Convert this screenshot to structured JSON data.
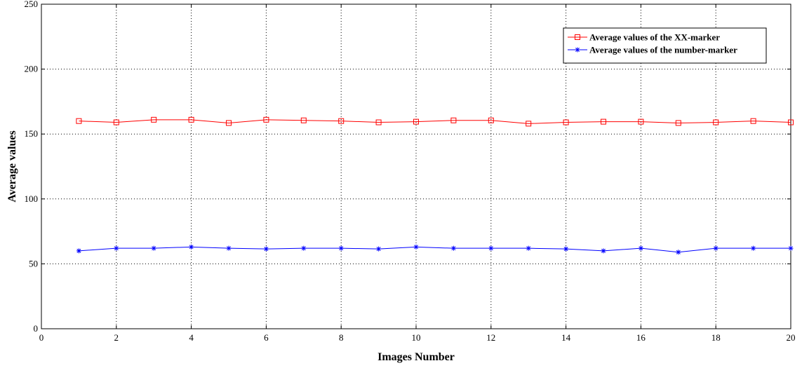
{
  "chart_data": {
    "type": "line",
    "title": "",
    "xlabel": "Images Number",
    "ylabel": "Average values",
    "xlim": [
      0,
      20
    ],
    "ylim": [
      0,
      250
    ],
    "xticks": [
      0,
      2,
      4,
      6,
      8,
      10,
      12,
      14,
      16,
      18,
      20
    ],
    "yticks": [
      0,
      50,
      100,
      150,
      200,
      250
    ],
    "grid": true,
    "legend_position": "top-right",
    "x": [
      1,
      2,
      3,
      4,
      5,
      6,
      7,
      8,
      9,
      10,
      11,
      12,
      13,
      14,
      15,
      16,
      17,
      18,
      19,
      20
    ],
    "series": [
      {
        "name": "Average values of the XX-marker",
        "color": "#ff0000",
        "marker": "square",
        "values": [
          160,
          159,
          161,
          161,
          158.5,
          161,
          160.5,
          160,
          159,
          159.5,
          160.5,
          160.5,
          158,
          159,
          159.5,
          159.5,
          158.5,
          159,
          160,
          159
        ]
      },
      {
        "name": "Average values of the number-marker",
        "color": "#0000ff",
        "marker": "asterisk",
        "values": [
          60,
          62,
          62,
          63,
          62,
          61.5,
          62,
          62,
          61.5,
          63,
          62,
          62,
          62,
          61.5,
          60,
          62,
          59,
          62,
          62,
          62
        ]
      }
    ]
  }
}
